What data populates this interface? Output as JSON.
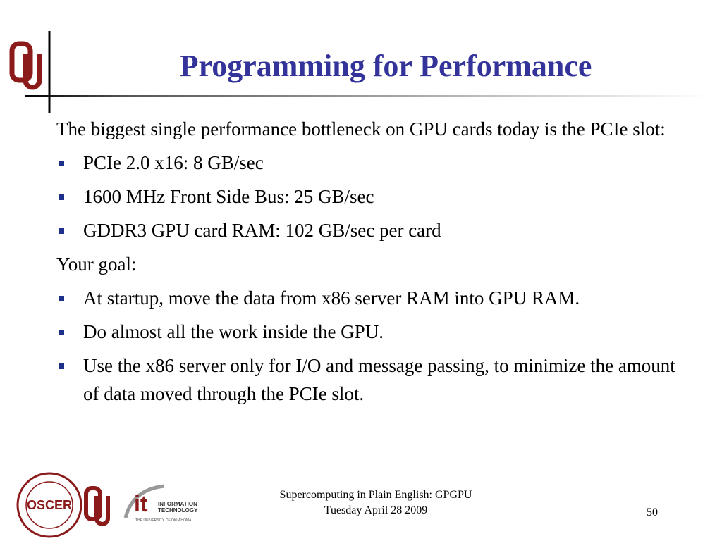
{
  "slide": {
    "title": "Programming for Performance",
    "body": [
      {
        "text": "The biggest single performance bottleneck on GPU cards today is the PCIe slot:",
        "bullet": false
      },
      {
        "text": "PCIe 2.0 x16: 8 GB/sec",
        "bullet": true
      },
      {
        "text": "1600 MHz Front Side Bus: 25 GB/sec",
        "bullet": true
      },
      {
        "text": "GDDR3 GPU card RAM: 102 GB/sec per card",
        "bullet": true
      },
      {
        "text": "Your goal:",
        "bullet": false
      },
      {
        "text": "At startup, move the data from x86 server RAM into GPU RAM.",
        "bullet": true
      },
      {
        "text": "Do almost all the work inside the GPU.",
        "bullet": true
      },
      {
        "text": "Use the x86 server only for I/O and message passing, to minimize the amount of data moved through the PCIe slot.",
        "bullet": true
      }
    ],
    "footer": [
      "Supercomputing in Plain English: GPGPU",
      "Tuesday April 28 2009"
    ],
    "page_number": "50",
    "logos": {
      "oscer": "OSCER",
      "it_line1": "INFORMATION",
      "it_line2": "TECHNOLOGY",
      "it_line3": "THE UNIVERSITY OF OKLAHOMA"
    }
  }
}
